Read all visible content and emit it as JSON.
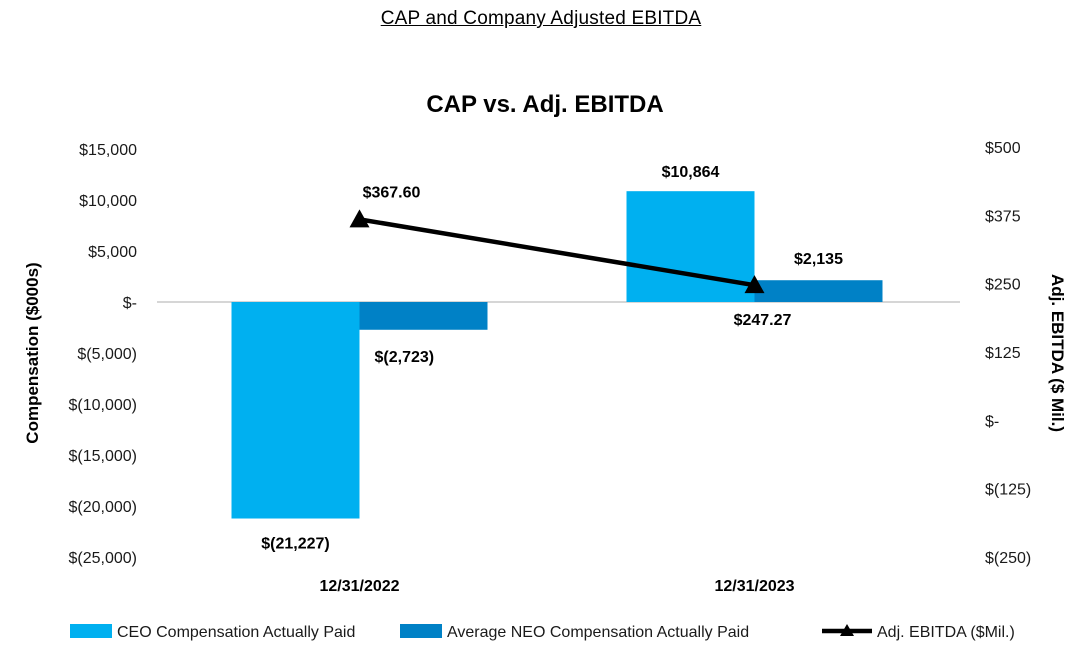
{
  "heading": "CAP and Company Adjusted EBITDA",
  "chart_data": {
    "type": "bar",
    "title": "CAP vs. Adj. EBITDA",
    "categories": [
      "12/31/2022",
      "12/31/2023"
    ],
    "series": [
      {
        "name": "CEO Compensation Actually Paid",
        "type": "bar",
        "axis": "left",
        "color": "#00B0F0",
        "values": [
          -21227,
          10864
        ],
        "labels": [
          "$(21,227)",
          "$10,864"
        ]
      },
      {
        "name": "Average NEO Compensation Actually Paid",
        "type": "bar",
        "axis": "left",
        "color": "#0081C6",
        "values": [
          -2723,
          2135
        ],
        "labels": [
          "$(2,723)",
          "$2,135"
        ]
      },
      {
        "name": "Adj. EBITDA ($Mil.)",
        "type": "line",
        "axis": "right",
        "color": "#000000",
        "values": [
          367.6,
          247.27
        ],
        "labels": [
          "$367.60",
          "$247.27"
        ]
      }
    ],
    "ylabel": "Compensation ($000s)",
    "y2label": "Adj. EBITDA ($ Mil.)",
    "ylim": [
      -25000,
      15000
    ],
    "y2lim": [
      -250,
      500
    ],
    "yticks": [
      15000,
      10000,
      5000,
      0,
      -5000,
      -10000,
      -15000,
      -20000,
      -25000
    ],
    "ytick_labels": [
      "$15,000",
      "$10,000",
      "$5,000",
      "$-",
      "$(5,000)",
      "$(10,000)",
      "$(15,000)",
      "$(20,000)",
      "$(25,000)"
    ],
    "y2ticks": [
      500,
      375,
      250,
      125,
      0,
      -125,
      -250
    ],
    "y2tick_labels": [
      "$500",
      "$375",
      "$250",
      "$125",
      "$-",
      "$(125)",
      "$(250)"
    ],
    "legend_position": "bottom",
    "grid": false
  }
}
